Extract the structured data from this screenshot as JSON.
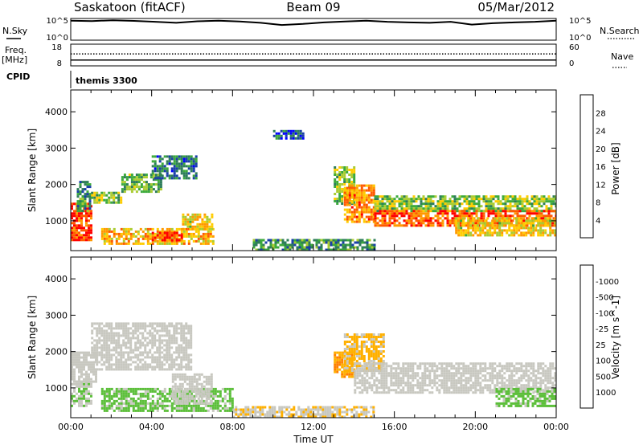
{
  "header": {
    "station": "Saskatoon (fitACF)",
    "beam": "Beam 09",
    "date": "05/Mar/2012"
  },
  "strips": {
    "nsky_label": "N.Sky",
    "nsky_ticks": [
      "10^5",
      "10^0"
    ],
    "nsearch_label": "N.Search",
    "nsearch_ticks": [
      "10^5",
      "10^0"
    ],
    "freq_label": "Freq.",
    "freq_unit": "[MHz]",
    "freq_ticks": [
      "18",
      "8"
    ],
    "nave_label": "Nave",
    "nave_ticks": [
      "60",
      "0"
    ],
    "cpid_label": "CPID",
    "cpid_value": "themis 3300"
  },
  "colors": {
    "power": [
      "#0000ff",
      "#1a3fa8",
      "#2e7d5a",
      "#3caa3c",
      "#aacc33",
      "#ffcc00",
      "#ff9900",
      "#ff5a00",
      "#ff0000"
    ],
    "velocity": [
      "#1a2ea8",
      "#1f5c9e",
      "#2e7d5a",
      "#5cbf3a",
      "#c8c8c0",
      "#ffb000",
      "#ff8000",
      "#ff4000",
      "#ff0000"
    ],
    "ground_scatter": "#c8c8c0"
  },
  "chart_data": [
    {
      "type": "heatmap",
      "panel": "power",
      "ylabel": "Slant Range [km]",
      "xlabel": "",
      "x_ticks": [
        "00:00",
        "04:00",
        "08:00",
        "12:00",
        "16:00",
        "20:00",
        "00:00"
      ],
      "y_ticks": [
        "1000",
        "2000",
        "3000",
        "4000"
      ],
      "xlim": [
        0,
        24
      ],
      "ylim": [
        180,
        4600
      ],
      "colorbar": {
        "label": "Power [dB]",
        "ticks": [
          "4",
          "8",
          "12",
          "16",
          "20",
          "24",
          "28"
        ],
        "range": [
          0,
          30
        ]
      },
      "regions": [
        {
          "x": [
            0.0,
            1.0
          ],
          "y": [
            500,
            1500
          ],
          "value": 26
        },
        {
          "x": [
            0.3,
            1.0
          ],
          "y": [
            1300,
            2100
          ],
          "value": 10
        },
        {
          "x": [
            1.0,
            2.5
          ],
          "y": [
            1500,
            1800
          ],
          "value": 14
        },
        {
          "x": [
            2.5,
            4.5
          ],
          "y": [
            1800,
            2300
          ],
          "value": 12
        },
        {
          "x": [
            4.0,
            6.2
          ],
          "y": [
            2200,
            2800
          ],
          "value": 8
        },
        {
          "x": [
            1.5,
            7.0
          ],
          "y": [
            400,
            800
          ],
          "value": 20
        },
        {
          "x": [
            4.0,
            5.5
          ],
          "y": [
            450,
            700
          ],
          "value": 26
        },
        {
          "x": [
            5.5,
            7.0
          ],
          "y": [
            800,
            1200
          ],
          "value": 18
        },
        {
          "x": [
            10.0,
            11.5
          ],
          "y": [
            3300,
            3500
          ],
          "value": 6
        },
        {
          "x": [
            13.0,
            14.0
          ],
          "y": [
            1500,
            2500
          ],
          "value": 14
        },
        {
          "x": [
            13.5,
            15.0
          ],
          "y": [
            1000,
            2000
          ],
          "value": 22
        },
        {
          "x": [
            15.0,
            24.0
          ],
          "y": [
            1300,
            1700
          ],
          "value": 14
        },
        {
          "x": [
            15.0,
            24.0
          ],
          "y": [
            900,
            1300
          ],
          "value": 25
        },
        {
          "x": [
            19.0,
            24.0
          ],
          "y": [
            600,
            1100
          ],
          "value": 18
        },
        {
          "x": [
            9.0,
            15.0
          ],
          "y": [
            200,
            500
          ],
          "value": 10
        }
      ]
    },
    {
      "type": "heatmap",
      "panel": "velocity",
      "ylabel": "Slant Range [km]",
      "xlabel": "Time UT",
      "x_ticks": [
        "00:00",
        "04:00",
        "08:00",
        "12:00",
        "16:00",
        "20:00",
        "00:00"
      ],
      "y_ticks": [
        "1000",
        "2000",
        "3000",
        "4000"
      ],
      "xlim": [
        0,
        24
      ],
      "ylim": [
        180,
        4600
      ],
      "colorbar": {
        "label": "Velocity [m s^-1]",
        "ticks": [
          "1000",
          "500",
          "100",
          "25",
          "-25",
          "-100",
          "-500",
          "-1000"
        ],
        "range": [
          1000,
          -1000
        ]
      },
      "regions": [
        {
          "x": [
            0.0,
            1.0
          ],
          "y": [
            500,
            1200
          ],
          "value": 100
        },
        {
          "x": [
            0.0,
            1.2
          ],
          "y": [
            1200,
            2000
          ],
          "value": 0
        },
        {
          "x": [
            1.0,
            6.0
          ],
          "y": [
            1500,
            2800
          ],
          "value": 0
        },
        {
          "x": [
            1.5,
            8.0
          ],
          "y": [
            400,
            1000
          ],
          "value": 150
        },
        {
          "x": [
            5.0,
            7.0
          ],
          "y": [
            600,
            1400
          ],
          "value": 0
        },
        {
          "x": [
            13.0,
            14.0
          ],
          "y": [
            1300,
            2000
          ],
          "value": -300
        },
        {
          "x": [
            13.5,
            15.5
          ],
          "y": [
            1500,
            2500
          ],
          "value": -150
        },
        {
          "x": [
            14.0,
            24.0
          ],
          "y": [
            900,
            1700
          ],
          "value": 0
        },
        {
          "x": [
            21.0,
            24.0
          ],
          "y": [
            500,
            1000
          ],
          "value": 150
        },
        {
          "x": [
            8.0,
            15.0
          ],
          "y": [
            200,
            500
          ],
          "value": -80
        }
      ]
    }
  ],
  "strip_data": {
    "nsky_series": [
      0.9,
      0.88,
      0.92,
      0.89,
      0.85,
      0.8,
      0.87,
      0.9,
      0.86,
      0.8,
      0.7,
      0.75,
      0.82,
      0.86,
      0.9,
      0.85,
      0.82,
      0.8,
      0.85,
      0.72,
      0.78,
      0.82,
      0.85,
      0.9
    ],
    "freq_level": 0.27,
    "nave_level": 0.55
  }
}
